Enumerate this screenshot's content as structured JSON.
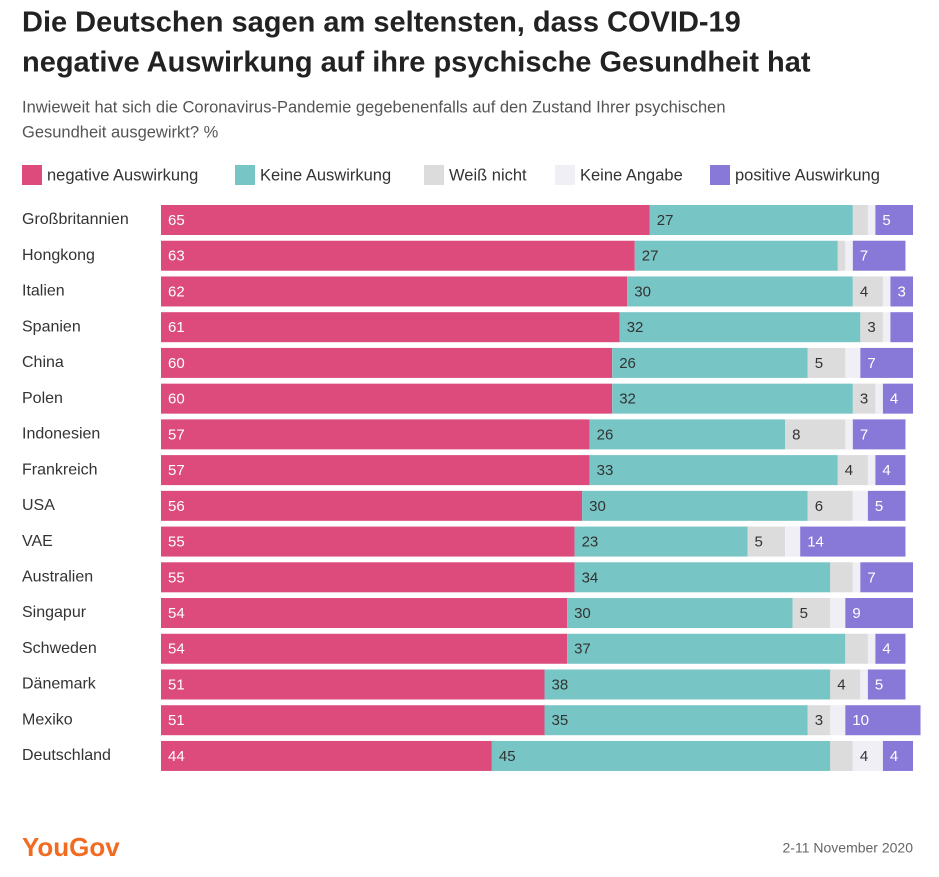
{
  "chart_data": {
    "type": "stacked-bar-horizontal",
    "title": [
      "Die Deutschen sagen am seltensten, dass COVID-19",
      "negative Auswirkung auf ihre psychische Gesundheit hat"
    ],
    "subtitle": [
      "Inwieweit hat sich die Coronavirus-Pandemie gegebenenfalls auf den Zustand Ihrer psychischen",
      "Gesundheit ausgewirkt?  %"
    ],
    "categories": [
      "Großbritannien",
      "Hongkong",
      "Italien",
      "Spanien",
      "China",
      "Polen",
      "Indonesien",
      "Frankreich",
      "USA",
      "VAE",
      "Australien",
      "Singapur",
      "Schweden",
      "Dänemark",
      "Mexiko",
      "Deutschland"
    ],
    "xlim": [
      0,
      100
    ],
    "series": [
      {
        "name": "negative Auswirkung",
        "color": "#dc4b7c",
        "values": [
          65,
          63,
          62,
          61,
          60,
          60,
          57,
          57,
          56,
          55,
          55,
          54,
          54,
          51,
          51,
          44
        ],
        "value_labels": [
          "65",
          "63",
          "62",
          "61",
          "60",
          "60",
          "57",
          "57",
          "56",
          "55",
          "55",
          "54",
          "54",
          "51",
          "51",
          "44"
        ]
      },
      {
        "name": "Keine Auswirkung",
        "color": "#78c5c5",
        "values": [
          27,
          27,
          30,
          32,
          26,
          32,
          26,
          33,
          30,
          23,
          34,
          30,
          37,
          38,
          35,
          45
        ],
        "value_labels": [
          "27",
          "27",
          "30",
          "32",
          "26",
          "32",
          "26",
          "33",
          "30",
          "23",
          "34",
          "30",
          "37",
          "38",
          "35",
          "45"
        ]
      },
      {
        "name": "Weiß nicht",
        "color": "#dcdcdc",
        "values": [
          2,
          1,
          4,
          3,
          5,
          3,
          8,
          4,
          6,
          5,
          3,
          5,
          3,
          4,
          3,
          3
        ],
        "value_labels": [
          null,
          null,
          "4",
          "3",
          "5",
          "3",
          "8",
          "4",
          "6",
          "5",
          null,
          "5",
          null,
          "4",
          "3",
          null
        ]
      },
      {
        "name": "Keine Angabe",
        "color": "#efeff5",
        "values": [
          1,
          1,
          1,
          1,
          2,
          1,
          1,
          1,
          2,
          2,
          1,
          2,
          1,
          1,
          2,
          4
        ],
        "value_labels": [
          null,
          null,
          null,
          null,
          null,
          null,
          null,
          null,
          null,
          null,
          null,
          null,
          null,
          null,
          null,
          "4"
        ]
      },
      {
        "name": "positive Auswirkung",
        "color": "#8878d8",
        "values": [
          5,
          7,
          3,
          3,
          7,
          4,
          7,
          4,
          5,
          14,
          7,
          9,
          4,
          5,
          10,
          4
        ],
        "value_labels": [
          "5",
          "7",
          "3",
          null,
          "7",
          "4",
          "7",
          "4",
          "5",
          "14",
          "7",
          "9",
          "4",
          "5",
          "10",
          "4"
        ]
      }
    ],
    "source": "YouGov",
    "date": "2-11 November 2020"
  }
}
